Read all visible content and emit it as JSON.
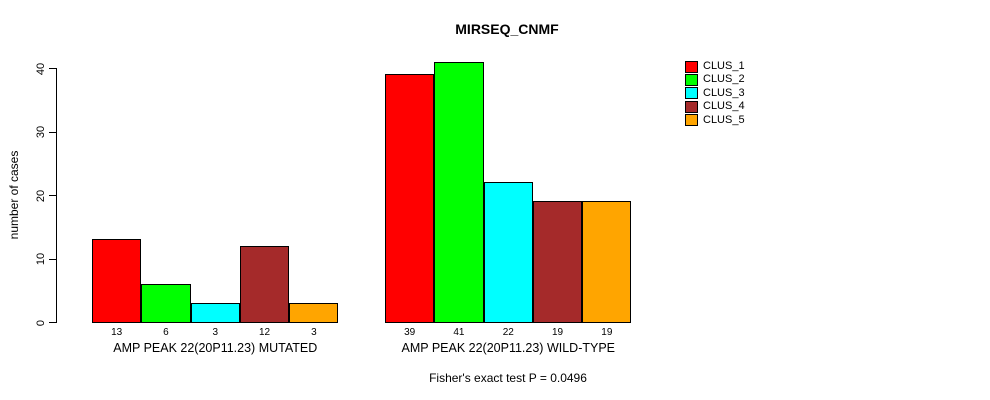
{
  "chart_data": {
    "type": "bar",
    "title": "MIRSEQ_CNMF",
    "ylabel": "number of cases",
    "xlabel": "",
    "ylim": [
      0,
      40
    ],
    "yticks": [
      0,
      10,
      20,
      30,
      40
    ],
    "grid": false,
    "legend_position": "right",
    "bar_border_color": "#000000",
    "series": [
      {
        "name": "CLUS_1",
        "color": "#FF0000"
      },
      {
        "name": "CLUS_2",
        "color": "#00FF00"
      },
      {
        "name": "CLUS_3",
        "color": "#00FFFF"
      },
      {
        "name": "CLUS_4",
        "color": "#A52A2A"
      },
      {
        "name": "CLUS_5",
        "color": "#FFA500"
      }
    ],
    "groups": [
      {
        "label": "AMP PEAK 22(20P11.23) MUTATED",
        "values": [
          13,
          6,
          3,
          12,
          3
        ]
      },
      {
        "label": "AMP PEAK 22(20P11.23) WILD-TYPE",
        "values": [
          39,
          41,
          22,
          19,
          19
        ]
      }
    ],
    "footnote": "Fisher's exact test P = 0.0496"
  }
}
